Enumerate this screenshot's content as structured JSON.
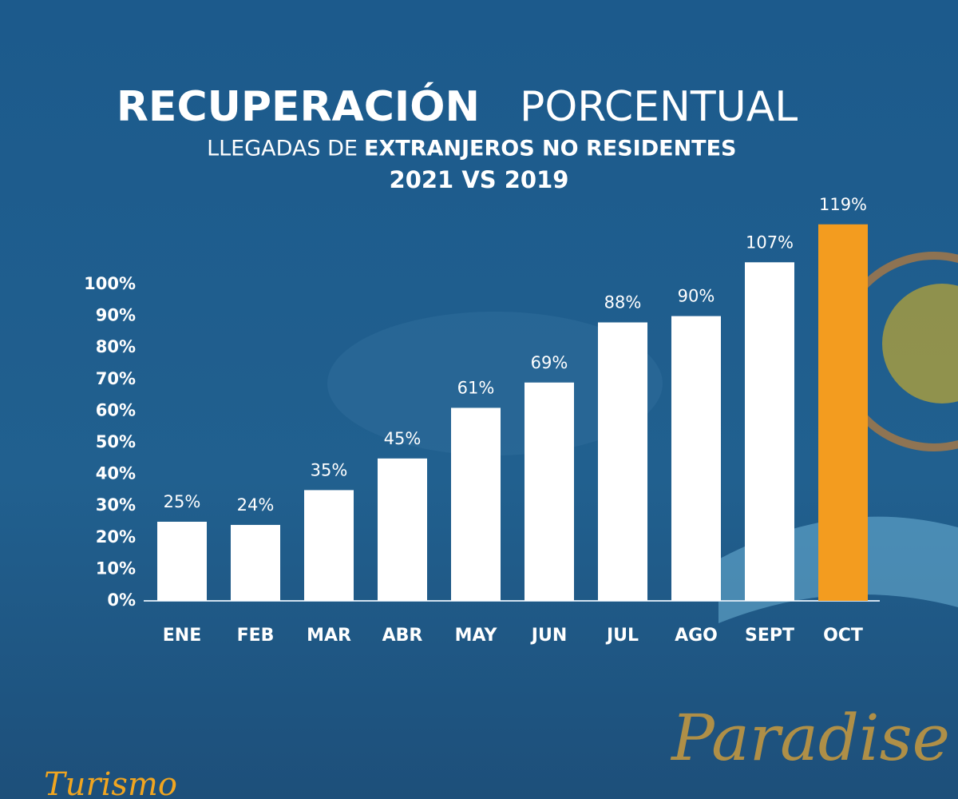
{
  "chart_data": {
    "type": "bar",
    "title": [
      "RECUPERACIÓN",
      "PORCENTUAL"
    ],
    "subtitle": [
      "LLEGADAS DE",
      "EXTRANJEROS NO RESIDENTES",
      "2021 VS 2019"
    ],
    "categories": [
      "ENE",
      "FEB",
      "MAR",
      "ABR",
      "MAY",
      "JUN",
      "JUL",
      "AGO",
      "SEPT",
      "OCT"
    ],
    "values": [
      25,
      24,
      35,
      45,
      61,
      69,
      88,
      90,
      107,
      119
    ],
    "value_labels": [
      "25%",
      "24%",
      "35%",
      "45%",
      "61%",
      "69%",
      "88%",
      "90%",
      "107%",
      "119%"
    ],
    "colors": [
      "#ffffff",
      "#ffffff",
      "#ffffff",
      "#ffffff",
      "#ffffff",
      "#ffffff",
      "#ffffff",
      "#ffffff",
      "#ffffff",
      "#f39c1f"
    ],
    "ylim": [
      0,
      120
    ],
    "yticks": [
      {
        "value": 0,
        "label": "0%"
      },
      {
        "value": 10,
        "label": "10%"
      },
      {
        "value": 20,
        "label": "20%"
      },
      {
        "value": 30,
        "label": "30%"
      },
      {
        "value": 40,
        "label": "40%"
      },
      {
        "value": 50,
        "label": "50%"
      },
      {
        "value": 60,
        "label": "60%"
      },
      {
        "value": 70,
        "label": "70%"
      },
      {
        "value": 80,
        "label": "80%"
      },
      {
        "value": 90,
        "label": "90%"
      },
      {
        "value": 100,
        "label": "100%"
      }
    ]
  },
  "branding": [
    "Paradise",
    "Turismo"
  ]
}
